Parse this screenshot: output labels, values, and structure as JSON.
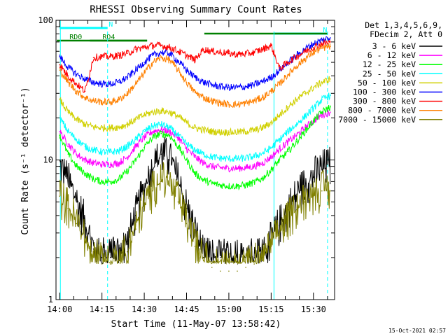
{
  "chart_data": {
    "type": "line",
    "title": "RHESSI Observing Summary Count Rates",
    "xlabel": "Start Time (11-May-07 13:58:42)",
    "ylabel": "Count Rate (s⁻¹ detector⁻¹)",
    "xlim_minutes": [
      -1.3,
      97.5
    ],
    "ylog": true,
    "ylim": [
      1,
      100
    ],
    "x_ticks": [
      {
        "m": 0,
        "label": "14:00"
      },
      {
        "m": 15,
        "label": "14:15"
      },
      {
        "m": 30,
        "label": "14:30"
      },
      {
        "m": 45,
        "label": "14:45"
      },
      {
        "m": 60,
        "label": "15:00"
      },
      {
        "m": 75,
        "label": "15:15"
      },
      {
        "m": 90,
        "label": "15:30"
      }
    ],
    "y_ticks": [
      {
        "v": 1,
        "label": "1"
      },
      {
        "v": 10,
        "label": "10"
      },
      {
        "v": 100,
        "label": "100"
      }
    ],
    "legend": {
      "placement": "top-right",
      "header": [
        "Det 1,3,4,5,6,9,",
        "FDecim 2, Att 0"
      ]
    },
    "series": [
      {
        "name": "3 - 6 keV",
        "color": "#000000",
        "x": [
          0,
          3,
          6,
          9,
          12,
          15,
          18,
          21,
          24,
          27,
          30,
          33,
          36,
          39,
          42,
          45,
          48,
          51,
          54,
          57,
          60,
          63,
          66,
          69,
          72,
          75,
          78,
          81,
          84,
          87,
          90,
          93,
          96
        ],
        "y": [
          9,
          7,
          5,
          3.5,
          2.3,
          2,
          2,
          2,
          2.5,
          4,
          6,
          8.5,
          11,
          10,
          7,
          4.5,
          3,
          2,
          2,
          2,
          2,
          2,
          2,
          2,
          2,
          2.6,
          3.4,
          4.4,
          5.5,
          6.5,
          7.5,
          8.5,
          9
        ]
      },
      {
        "name": "6 - 12 keV",
        "color": "#ff00ff",
        "x": [
          0,
          3,
          6,
          9,
          12,
          15,
          18,
          21,
          24,
          27,
          30,
          33,
          36,
          39,
          42,
          45,
          48,
          51,
          54,
          57,
          60,
          63,
          66,
          69,
          72,
          75,
          78,
          81,
          84,
          87,
          90,
          93,
          96
        ],
        "y": [
          16,
          13,
          11,
          10,
          9.5,
          9.3,
          9.3,
          9.5,
          10.5,
          12.5,
          14.5,
          16,
          16.5,
          16,
          14.5,
          12,
          10.5,
          9.5,
          9,
          8.8,
          8.7,
          8.7,
          8.8,
          9,
          9.5,
          10.5,
          12,
          13.5,
          15,
          17,
          19,
          21,
          22
        ]
      },
      {
        "name": "12 - 25 keV",
        "color": "#00ff00",
        "x": [
          0,
          3,
          6,
          9,
          12,
          15,
          18,
          21,
          24,
          27,
          30,
          33,
          36,
          39,
          42,
          45,
          48,
          51,
          54,
          57,
          60,
          63,
          66,
          69,
          72,
          75,
          78,
          81,
          84,
          87,
          90,
          93,
          96
        ],
        "y": [
          15,
          11,
          9,
          8,
          7.3,
          7,
          7,
          7.3,
          8.3,
          10,
          12.3,
          14.5,
          15.5,
          15,
          12.5,
          10,
          8,
          7.2,
          6.8,
          6.6,
          6.5,
          6.5,
          6.6,
          6.9,
          7.4,
          8.5,
          10,
          11.5,
          13.5,
          16,
          19,
          22,
          24
        ]
      },
      {
        "name": "25 - 50 keV",
        "color": "#00ffff",
        "x": [
          0,
          3,
          6,
          9,
          12,
          15,
          18,
          21,
          24,
          27,
          30,
          33,
          36,
          39,
          42,
          45,
          48,
          51,
          54,
          57,
          60,
          63,
          66,
          69,
          72,
          75,
          78,
          81,
          84,
          87,
          90,
          93,
          96
        ],
        "y": [
          20,
          16,
          14,
          12.5,
          11.8,
          11.4,
          11.4,
          11.6,
          12.5,
          14,
          16,
          17.5,
          18,
          17,
          15,
          13,
          11.8,
          11,
          10.5,
          10.3,
          10.2,
          10.2,
          10.3,
          10.6,
          11.2,
          12.2,
          14,
          16,
          18,
          20.5,
          23.5,
          27,
          29
        ]
      },
      {
        "name": "50 - 100 keV",
        "color": "#d0d000",
        "x": [
          0,
          3,
          6,
          9,
          12,
          15,
          18,
          21,
          24,
          27,
          30,
          33,
          36,
          39,
          42,
          45,
          48,
          51,
          54,
          57,
          60,
          63,
          66,
          69,
          72,
          75,
          78,
          81,
          84,
          87,
          90,
          93,
          96
        ],
        "y": [
          27,
          22,
          19.5,
          18,
          17.2,
          17,
          17,
          17.2,
          18,
          19.5,
          21,
          22,
          22.5,
          22,
          20.5,
          18.5,
          17,
          16.4,
          16,
          15.8,
          15.8,
          15.8,
          16,
          16.3,
          17,
          18.5,
          21,
          24,
          27,
          30,
          33,
          36,
          38
        ]
      },
      {
        "name": "100 - 300 keV",
        "color": "#0000ff",
        "x": [
          0,
          3,
          6,
          9,
          12,
          15,
          18,
          21,
          24,
          27,
          30,
          33,
          36,
          39,
          42,
          45,
          48,
          51,
          54,
          57,
          60,
          63,
          66,
          69,
          72,
          75,
          78,
          81,
          84,
          87,
          90,
          93,
          96
        ],
        "y": [
          55,
          46,
          41,
          38,
          36,
          35,
          35,
          36,
          39,
          44,
          50,
          56,
          59,
          58,
          51,
          44,
          39,
          36,
          34.5,
          33.5,
          33,
          33,
          33.5,
          34.5,
          36.5,
          39,
          44,
          50,
          56,
          62,
          68,
          72,
          75
        ]
      },
      {
        "name": "300 - 800 keV",
        "color": "#ff0000",
        "x": [
          0,
          3,
          6,
          9,
          12,
          15,
          18,
          21,
          24,
          27,
          30,
          33,
          36,
          39,
          42,
          45,
          48,
          51,
          54,
          57,
          60,
          63,
          66,
          69,
          72,
          75,
          78,
          81,
          84,
          87,
          90,
          93,
          96
        ],
        "y": [
          48,
          40,
          35,
          31,
          54,
          55,
          55,
          56,
          58,
          62,
          64,
          66,
          66,
          64,
          60,
          56,
          52,
          62,
          60,
          59,
          58,
          57,
          57.5,
          59,
          62,
          66,
          45,
          50,
          55,
          60,
          64,
          68,
          70
        ]
      },
      {
        "name": "800 - 7000 keV",
        "color": "#ff8000",
        "x": [
          0,
          3,
          6,
          9,
          12,
          15,
          18,
          21,
          24,
          27,
          30,
          33,
          36,
          39,
          42,
          45,
          48,
          51,
          54,
          57,
          60,
          63,
          66,
          69,
          72,
          75,
          78,
          81,
          84,
          87,
          90,
          93,
          96
        ],
        "y": [
          44,
          36,
          31,
          28,
          26.5,
          26,
          26,
          27,
          30,
          35,
          42,
          50,
          54,
          52,
          44,
          36,
          30.5,
          28,
          26.5,
          25.5,
          25,
          25,
          25.5,
          26.5,
          28,
          31,
          35,
          41,
          47,
          53,
          59,
          63,
          65
        ]
      },
      {
        "name": "7000 - 15000 keV",
        "color": "#808000",
        "x": [
          0,
          3,
          6,
          9,
          12,
          15,
          18,
          21,
          24,
          27,
          30,
          33,
          36,
          39,
          42,
          45,
          48,
          51,
          54,
          57,
          60,
          63,
          66,
          69,
          72,
          75,
          78,
          81,
          84,
          87,
          90,
          93,
          96
        ],
        "y": [
          5.5,
          4.5,
          3.5,
          2.6,
          2,
          1.8,
          1.8,
          1.9,
          2.2,
          3.2,
          4.6,
          6,
          7,
          6.5,
          5,
          3.5,
          2.4,
          1.9,
          1.7,
          1.6,
          1.6,
          1.6,
          1.7,
          1.8,
          1.9,
          2.4,
          3,
          3.7,
          4.4,
          5,
          5.5,
          6,
          6
        ]
      }
    ],
    "annotations": [
      {
        "label": "N",
        "color": "#00ffff",
        "start": 0,
        "end": 17
      },
      {
        "label": "N",
        "color": "#00ffff",
        "start": 76,
        "end": 95
      },
      {
        "label": "RD0",
        "color": "#008000",
        "start": -1,
        "end": 31
      },
      {
        "label": "RD4",
        "color": "#008000",
        "start": 10.7,
        "end": 31
      },
      {
        "label": "",
        "color": "#008000",
        "start": 51.3,
        "end": 95
      }
    ]
  },
  "footer_timestamp": "15-Oct-2021 02:57"
}
